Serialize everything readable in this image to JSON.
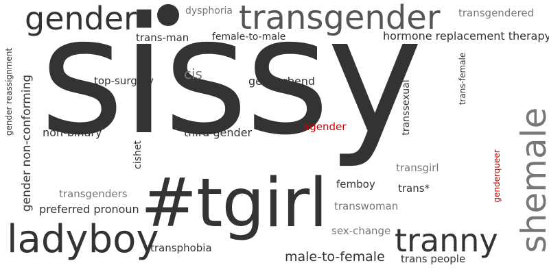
{
  "words": {
    "sissy": "sissy",
    "tgirl": "#tgirl",
    "transgender": "transgender",
    "gender": "gender",
    "ladyboy": "ladyboy",
    "tranny": "tranny",
    "shemale": "shemale",
    "dysphoria": "dysphoria",
    "transgendered": "transgendered",
    "trans_man": "trans-man",
    "female_to_male": "female-to-male",
    "hrt": "hormone replacement therapy",
    "gender_reassignment": "gender reassignment",
    "gender_non_conforming": "gender non-conforming",
    "top_surgery": "top-surgery",
    "cis": "cis",
    "genderbend": "genderbend",
    "transsexual": "transsexual",
    "trans_female": "trans-female",
    "non_binary": "non-binary",
    "cishet": "cishet",
    "third_gender": "third gender",
    "agender": "agender",
    "transgirl": "transgirl",
    "genderqueer": "genderqueer",
    "transgenders": "transgenders",
    "femboy": "femboy",
    "trans_star": "trans*",
    "preferred_pronoun": "preferred pronoun",
    "transwoman": "transwoman",
    "sex_change": "sex-change",
    "transphobia": "transphobia",
    "male_to_female": "male-to-female",
    "trans_people": "trans people"
  },
  "colors": {
    "dark": "#333333",
    "gray": "#777777",
    "red": "#cc0000",
    "background": "#ffffff"
  }
}
